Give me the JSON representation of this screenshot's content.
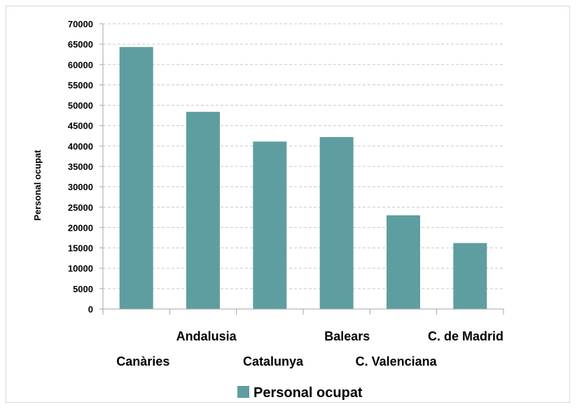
{
  "chart_data": {
    "type": "bar",
    "categories": [
      "Canàries",
      "Andalusia",
      "Catalunya",
      "Balears",
      "C. Valenciana",
      "C. de Madrid"
    ],
    "series": [
      {
        "name": "Personal ocupat",
        "values": [
          64300,
          48400,
          41100,
          42200,
          23000,
          16200
        ]
      }
    ],
    "ylabel": "Personal ocupat",
    "ylim": [
      0,
      70000
    ],
    "yticks": [
      0,
      5000,
      10000,
      15000,
      20000,
      25000,
      30000,
      35000,
      40000,
      45000,
      50000,
      55000,
      60000,
      65000,
      70000
    ],
    "grid": "horizontal dashed",
    "legend_position": "bottom",
    "colors": {
      "bar": "#5f9ea0",
      "grid": "#c8c8c8",
      "axis": "#a6a6a6"
    }
  }
}
